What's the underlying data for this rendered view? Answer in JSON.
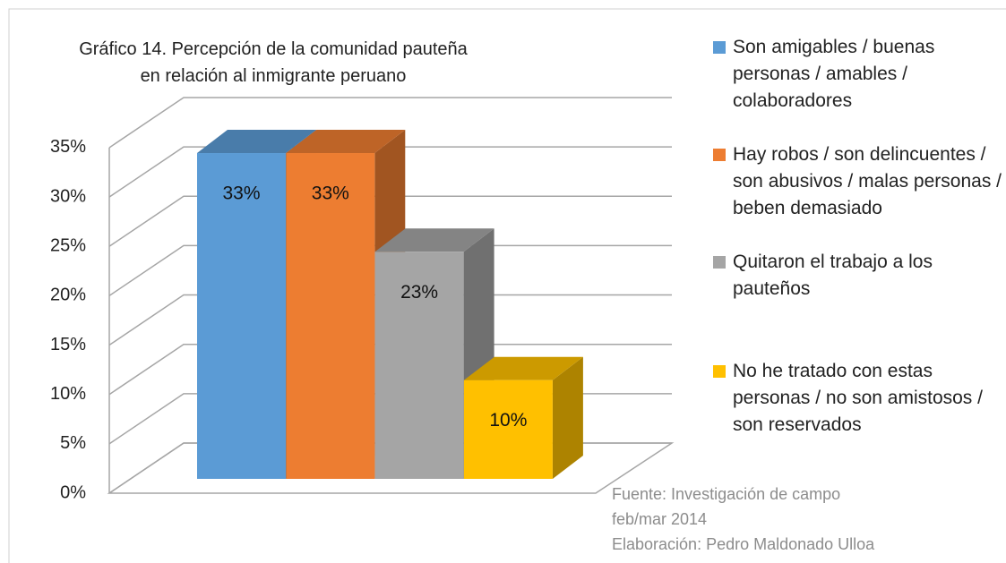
{
  "chart_data": {
    "type": "bar3d",
    "title": "Gráfico 14. Percepción de la comunidad pauteña en relación al inmigrante peruano",
    "series": [
      {
        "name": "Son amigables / buenas personas / amables / colaboradores",
        "color": "#5b9bd5",
        "values": [
          33
        ],
        "value_labels": [
          "33%"
        ]
      },
      {
        "name": "Hay robos / son delincuentes / son abusivos / malas personas / beben demasiado",
        "color": "#ed7d31",
        "values": [
          33
        ],
        "value_labels": [
          "33%"
        ]
      },
      {
        "name": "Quitaron el trabajo a los pauteños",
        "color": "#a5a5a5",
        "values": [
          23
        ],
        "value_labels": [
          "23%"
        ]
      },
      {
        "name": "No he tratado con estas personas / no son amistosos / son reservados",
        "color": "#ffc000",
        "values": [
          10
        ],
        "value_labels": [
          "10%"
        ]
      }
    ],
    "ylim": [
      0,
      35
    ],
    "yticks": [
      {
        "value": 0,
        "label": "0%"
      },
      {
        "value": 5,
        "label": "5%"
      },
      {
        "value": 10,
        "label": "10%"
      },
      {
        "value": 15,
        "label": "15%"
      },
      {
        "value": 20,
        "label": "20%"
      },
      {
        "value": 25,
        "label": "25%"
      },
      {
        "value": 30,
        "label": "30%"
      },
      {
        "value": 35,
        "label": "35%"
      }
    ],
    "grid": true,
    "legend": "right",
    "source": [
      "Fuente:  Investigación de campo",
      "feb/mar 2014",
      "Elaboración: Pedro Maldonado Ulloa"
    ]
  }
}
